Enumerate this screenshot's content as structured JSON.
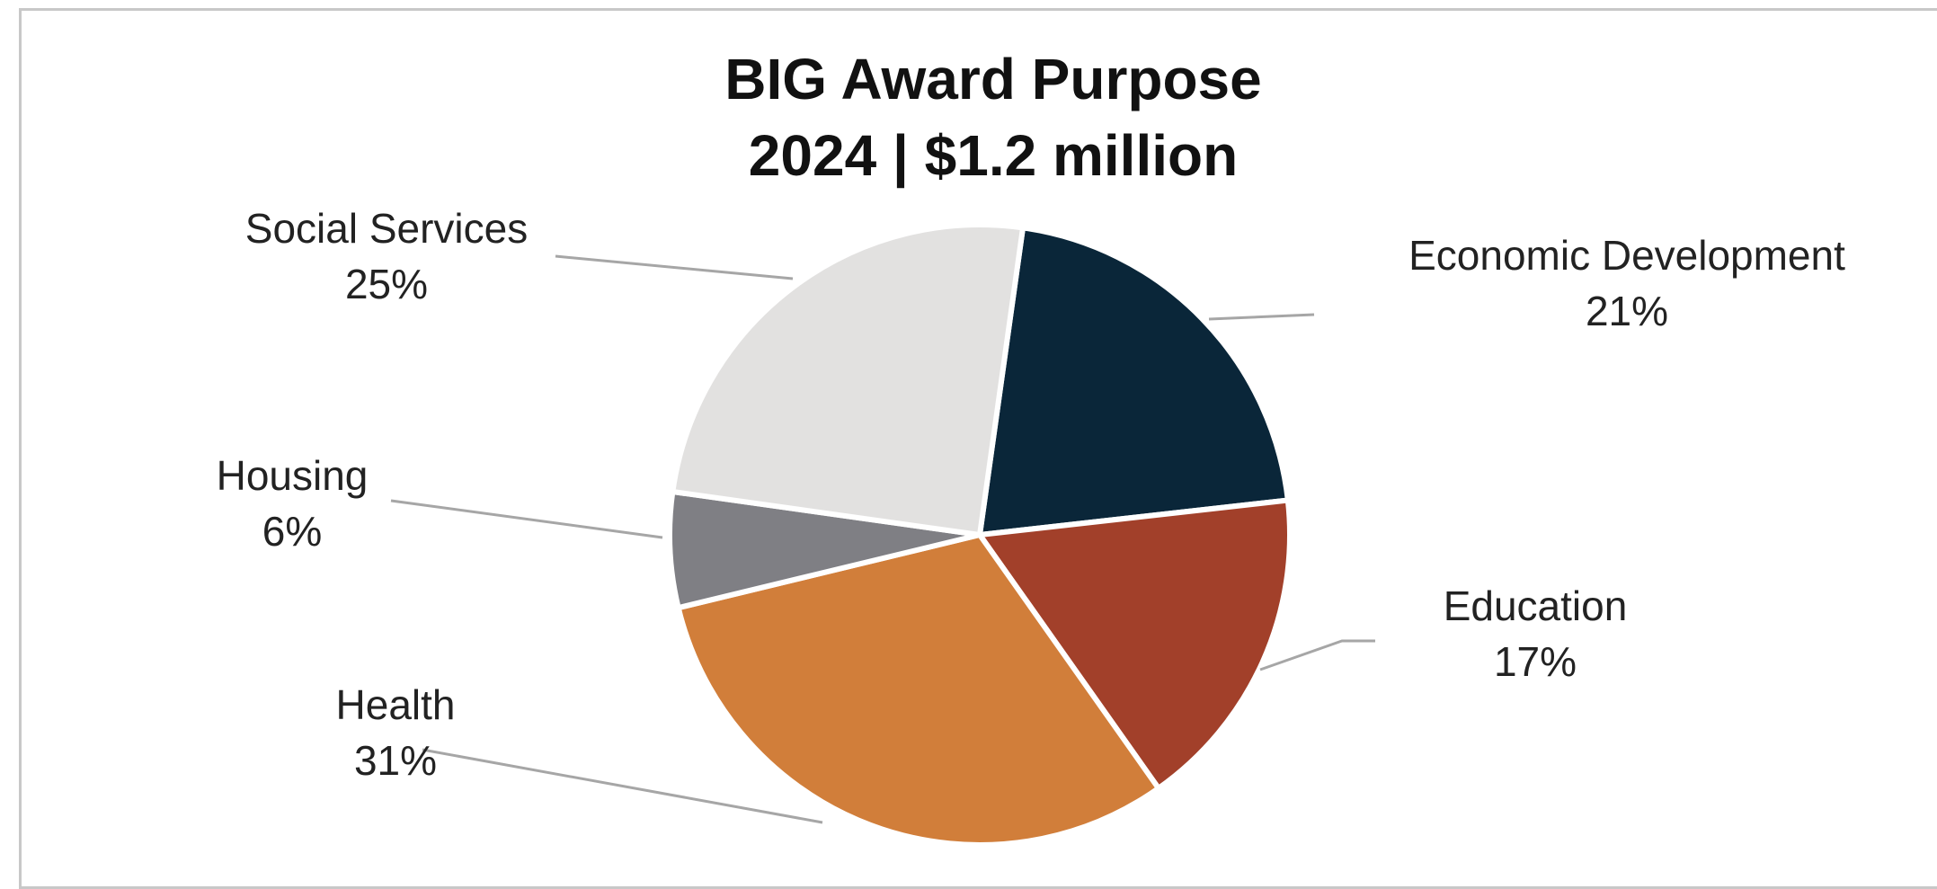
{
  "chart_data": {
    "type": "pie",
    "title_lines": [
      "BIG Award Purpose",
      "2024 | $1.2 million"
    ],
    "slices": [
      {
        "label": "Economic Development",
        "percent_label": "21%",
        "value": 21,
        "color": "#0a2639"
      },
      {
        "label": "Education",
        "percent_label": "17%",
        "value": 17,
        "color": "#a2402a"
      },
      {
        "label": "Health",
        "percent_label": "31%",
        "value": 31,
        "color": "#d17e3a"
      },
      {
        "label": "Housing",
        "percent_label": "6%",
        "value": 6,
        "color": "#7f7f84"
      },
      {
        "label": "Social Services",
        "percent_label": "25%",
        "value": 25,
        "color": "#e2e1e0"
      }
    ],
    "legend": "none",
    "data_labels": "outside with leader lines"
  }
}
